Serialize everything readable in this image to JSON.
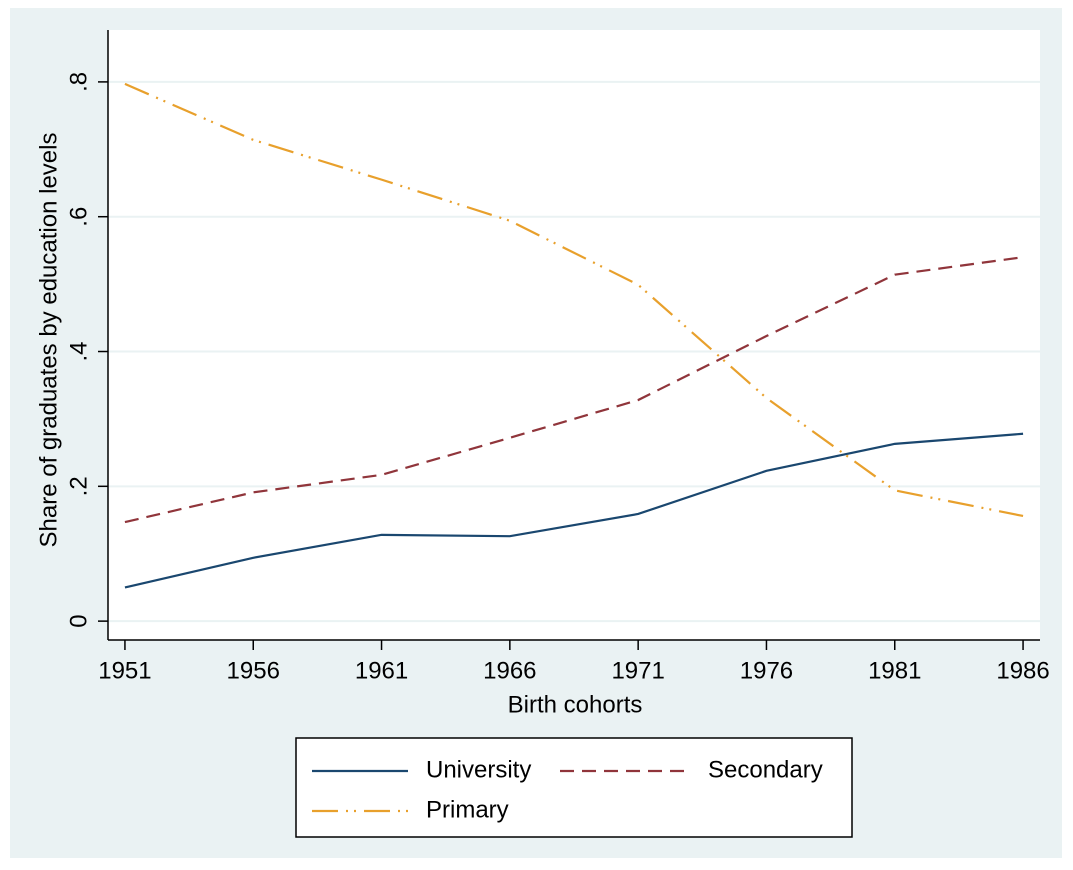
{
  "chart_data": {
    "type": "line",
    "xlabel": "Birth cohorts",
    "ylabel": "Share of graduates by education levels",
    "x": [
      1951,
      1956,
      1961,
      1966,
      1971,
      1976,
      1981,
      1986
    ],
    "series": [
      {
        "name": "University",
        "color": "#1a476f",
        "line_style": "solid",
        "values": [
          0.05,
          0.094,
          0.128,
          0.126,
          0.159,
          0.223,
          0.263,
          0.278
        ]
      },
      {
        "name": "Secondary",
        "color": "#90353b",
        "line_style": "dashed",
        "values": [
          0.147,
          0.191,
          0.217,
          0.272,
          0.328,
          0.423,
          0.514,
          0.54
        ]
      },
      {
        "name": "Primary",
        "color": "#e8a02c",
        "line_style": "dash-dot-dot",
        "values": [
          0.797,
          0.714,
          0.655,
          0.594,
          0.499,
          0.331,
          0.194,
          0.156
        ]
      }
    ],
    "xlim": [
      1950.34,
      1986.66
    ],
    "xticks": [
      1951,
      1956,
      1961,
      1966,
      1971,
      1976,
      1981,
      1986
    ],
    "ylim": [
      -0.028,
      0.877
    ],
    "yticks": [
      0,
      {
        "value": 0.2,
        "label": ".2"
      },
      {
        "value": 0.4,
        "label": ".4"
      },
      {
        "value": 0.6,
        "label": ".6"
      },
      {
        "value": 0.8,
        "label": ".8"
      }
    ],
    "grid": true,
    "legend": "bottom"
  }
}
